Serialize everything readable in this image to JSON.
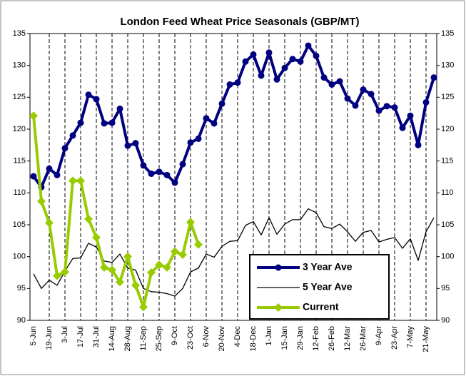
{
  "chart_data": {
    "type": "line",
    "title": "London Feed Wheat Price Seasonals (GBP/MT)",
    "categories": [
      "5-Jun",
      null,
      "19-Jun",
      null,
      "3-Jul",
      null,
      "17-Jul",
      null,
      "31-Jul",
      null,
      "14-Aug",
      null,
      "28-Aug",
      null,
      "11-Sep",
      null,
      "25-Sep",
      null,
      "9-Oct",
      null,
      "23-Oct",
      null,
      "6-Nov",
      null,
      "20-Nov",
      null,
      "4-Dec",
      null,
      "18-Dec",
      null,
      "1-Jan",
      null,
      "15-Jan",
      null,
      "29-Jan",
      null,
      "12-Feb",
      null,
      "26-Feb",
      null,
      "12-Mar",
      null,
      "26-Mar",
      null,
      "9-Apr",
      null,
      "23-Apr",
      null,
      "7-May",
      null,
      "21-May",
      null
    ],
    "series": [
      {
        "name": "3 Year Ave",
        "color": "#000080",
        "marker": "circle",
        "values": [
          112.6,
          110.9,
          113.8,
          112.8,
          117.0,
          119.0,
          121.0,
          125.4,
          124.7,
          120.9,
          121.0,
          123.2,
          117.4,
          117.8,
          114.3,
          113.0,
          113.3,
          112.8,
          111.6,
          114.5,
          117.9,
          118.5,
          121.7,
          120.9,
          124.0,
          127.0,
          127.3,
          130.6,
          131.7,
          128.4,
          132.0,
          127.8,
          129.6,
          131.0,
          130.6,
          133.1,
          131.5,
          128.1,
          127.0,
          127.5,
          124.8,
          123.7,
          126.2,
          125.5,
          122.9,
          123.6,
          123.4,
          120.2,
          122.1,
          117.5,
          124.2,
          128.1
        ]
      },
      {
        "name": "5 Year Ave",
        "color": "#000000",
        "marker": "none",
        "values": [
          97.3,
          95.0,
          96.3,
          95.5,
          97.7,
          99.7,
          99.8,
          102.1,
          101.5,
          99.3,
          99.1,
          100.4,
          98.2,
          97.9,
          95.0,
          94.5,
          94.4,
          94.2,
          93.8,
          95.0,
          97.6,
          98.2,
          100.4,
          99.9,
          101.6,
          102.4,
          102.5,
          104.9,
          105.5,
          103.4,
          106.1,
          103.5,
          105.1,
          105.8,
          105.8,
          107.5,
          106.9,
          104.7,
          104.4,
          105.1,
          103.9,
          102.4,
          103.8,
          104.1,
          102.3,
          102.7,
          103.0,
          101.3,
          102.8,
          99.4,
          103.9,
          106.1
        ]
      },
      {
        "name": "Current",
        "color": "#99cc00",
        "marker": "diamond",
        "values": [
          122.1,
          108.7,
          105.3,
          97.0,
          97.6,
          111.9,
          111.9,
          105.9,
          103.0,
          98.3,
          97.9,
          96.0,
          100.0,
          95.5,
          92.1,
          97.5,
          98.7,
          98.3,
          100.8,
          100.3,
          105.4,
          101.9,
          null,
          null,
          null,
          null,
          null,
          null,
          null,
          null,
          null,
          null,
          null,
          null,
          null,
          null,
          null,
          null,
          null,
          null,
          null,
          null,
          null,
          null,
          null,
          null,
          null,
          null,
          null,
          null,
          null,
          null
        ]
      }
    ],
    "ylim": [
      90,
      135
    ],
    "yticks": [
      90,
      95,
      100,
      105,
      110,
      115,
      120,
      125,
      130,
      135
    ],
    "y2lim": [
      90,
      135
    ],
    "y2ticks": [
      90,
      95,
      100,
      105,
      110,
      115,
      120,
      125,
      130,
      135
    ],
    "grid": true
  }
}
